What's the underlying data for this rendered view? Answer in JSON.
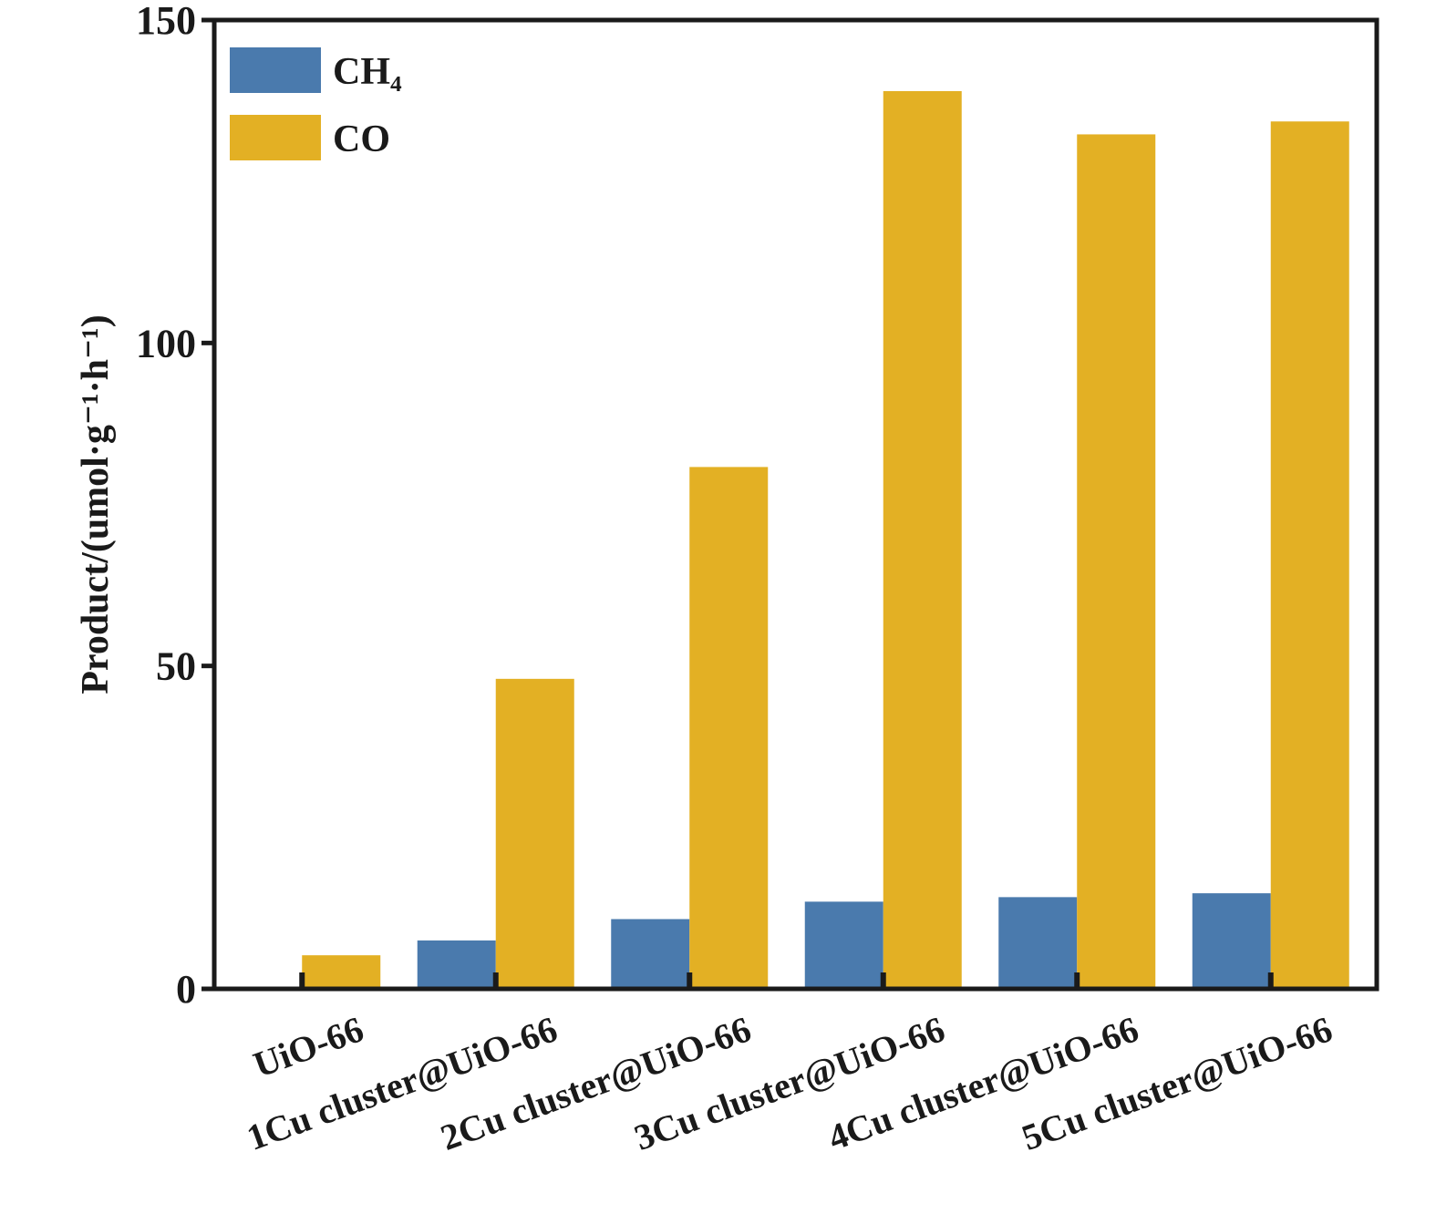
{
  "chart_data": {
    "type": "bar",
    "title": "",
    "xlabel": "",
    "ylabel": "Product/(umol·g⁻¹·h⁻¹)",
    "ylim": [
      0,
      150
    ],
    "yticks": [
      "0",
      "50",
      "100",
      "150"
    ],
    "grid": false,
    "legend_position": "top-left",
    "categories": [
      "UiO-66",
      "1Cu cluster@UiO-66",
      "2Cu cluster@UiO-66",
      "3Cu cluster@UiO-66",
      "4Cu cluster@UiO-66",
      "5Cu cluster@UiO-66"
    ],
    "series": [
      {
        "name": "CH₄",
        "color": "#4a7aad",
        "values": [
          0,
          7.5,
          10.8,
          13.5,
          14.2,
          14.8
        ]
      },
      {
        "name": "CO",
        "color": "#e3b024",
        "values": [
          5.2,
          48,
          80.8,
          139,
          132.3,
          134.3
        ]
      }
    ]
  }
}
